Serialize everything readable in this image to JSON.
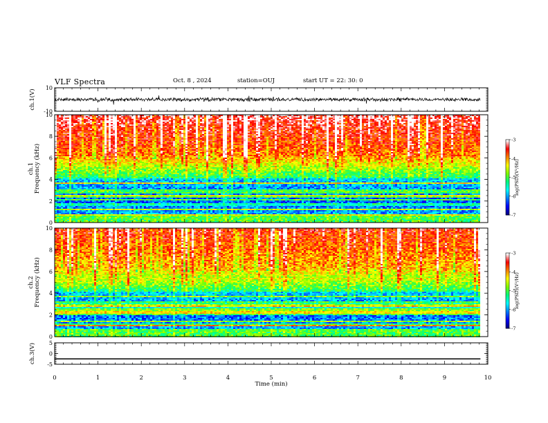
{
  "header": {
    "title": "VLF Spectra",
    "date": "Oct. 8  , 2024",
    "station": "station=OUJ",
    "start": "start  UT  =   22: 30: 0"
  },
  "chart_data": [
    {
      "type": "line",
      "name": "ch1-waveform",
      "ylabel": "ch.1(V)",
      "xlim": [
        0,
        10
      ],
      "ylim": [
        -10,
        10
      ],
      "yticks": [
        "10",
        "-10"
      ],
      "trace_end_min": 9.83
    },
    {
      "type": "heatmap",
      "name": "ch1-spectrogram",
      "ylabel": "ch.1\nFrequency (kHz)",
      "xlim": [
        0,
        10
      ],
      "ylim": [
        0,
        10
      ],
      "yticks": [
        "0",
        "2",
        "4",
        "6",
        "8",
        "10"
      ],
      "colorbar": {
        "label": "log(PSD)(V²/Hz)",
        "ticks": [
          "-3",
          "-4",
          "-5",
          "-6",
          "-7"
        ],
        "range": [
          -7,
          -3
        ]
      }
    },
    {
      "type": "heatmap",
      "name": "ch2-spectrogram",
      "ylabel": "ch.2\nFrequency (kHz)",
      "xlim": [
        0,
        10
      ],
      "ylim": [
        0,
        10
      ],
      "yticks": [
        "0",
        "2",
        "4",
        "6",
        "8",
        "10"
      ],
      "colorbar": {
        "label": "log(PSD)(V²/Hz)",
        "ticks": [
          "-3",
          "-4",
          "-5",
          "-6",
          "-7"
        ],
        "range": [
          -7,
          -3
        ]
      }
    },
    {
      "type": "line",
      "name": "ch3-waveform",
      "ylabel": "ch.3(V)",
      "xlim": [
        0,
        10
      ],
      "ylim": [
        -5,
        5
      ],
      "yticks": [
        "5",
        "0",
        "-5"
      ],
      "constant_value": -2.5
    }
  ],
  "xaxis": {
    "label": "Time (min)",
    "ticks": [
      "0",
      "1",
      "2",
      "3",
      "4",
      "5",
      "6",
      "7",
      "8",
      "9",
      "10"
    ]
  },
  "colors": {
    "spectral_scale": [
      "#000080",
      "#0000ff",
      "#0080ff",
      "#00ffff",
      "#00ff80",
      "#80ff00",
      "#ffff00",
      "#ff8000",
      "#ff0000",
      "#ffffff"
    ]
  }
}
